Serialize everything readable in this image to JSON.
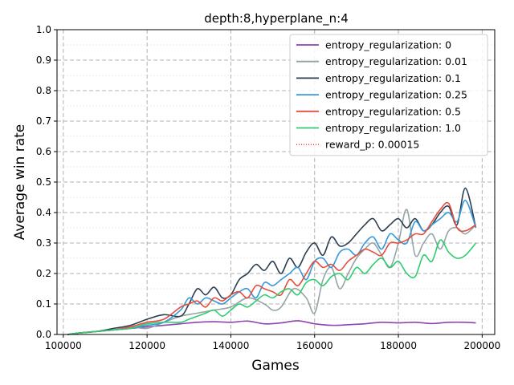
{
  "chart_data": {
    "type": "line",
    "title": "depth:8,hyperplane_n:4",
    "xlabel": "Games",
    "ylabel": "Average win rate",
    "xlim": [
      98500,
      203000
    ],
    "ylim": [
      0,
      1.0
    ],
    "x_ticks": [
      100000,
      120000,
      140000,
      160000,
      180000,
      200000
    ],
    "x_tick_labels": [
      "100000",
      "120000",
      "140000",
      "160000",
      "180000",
      "200000"
    ],
    "y_ticks": [
      0.0,
      0.1,
      0.2,
      0.3,
      0.4,
      0.5,
      0.6,
      0.7,
      0.8,
      0.9,
      1.0
    ],
    "y_tick_labels": [
      "0.0",
      "0.1",
      "0.2",
      "0.3",
      "0.4",
      "0.5",
      "0.6",
      "0.7",
      "0.8",
      "0.9",
      "1.0"
    ],
    "grid": true,
    "legend_position": "top-right",
    "series": [
      {
        "name": "entropy_regularization: 0",
        "color": "#8e44ad",
        "style": "solid",
        "x": [
          101000,
          104000,
          108000,
          112000,
          116000,
          120000,
          124000,
          128000,
          132000,
          136000,
          140000,
          144000,
          148000,
          152000,
          156000,
          160000,
          164000,
          168000,
          172000,
          176000,
          180000,
          184000,
          188000,
          192000,
          196000,
          198500
        ],
        "values": [
          0.0,
          0.005,
          0.01,
          0.015,
          0.02,
          0.025,
          0.03,
          0.035,
          0.04,
          0.042,
          0.04,
          0.044,
          0.035,
          0.038,
          0.045,
          0.035,
          0.03,
          0.032,
          0.035,
          0.04,
          0.038,
          0.04,
          0.036,
          0.04,
          0.04,
          0.038
        ]
      },
      {
        "name": "entropy_regularization: 0.01",
        "color": "#95a5a6",
        "style": "solid",
        "x": [
          101000,
          104000,
          108000,
          112000,
          116000,
          120000,
          124000,
          128000,
          132000,
          136000,
          140000,
          144000,
          148000,
          150000,
          152000,
          155000,
          158000,
          160000,
          162000,
          164000,
          166000,
          168000,
          170000,
          172000,
          174000,
          176000,
          178000,
          180000,
          182000,
          184000,
          186000,
          188000,
          190000,
          192000,
          194000,
          196000,
          198500
        ],
        "values": [
          0.0,
          0.005,
          0.01,
          0.015,
          0.025,
          0.02,
          0.04,
          0.06,
          0.07,
          0.08,
          0.09,
          0.12,
          0.1,
          0.08,
          0.09,
          0.15,
          0.12,
          0.07,
          0.18,
          0.22,
          0.15,
          0.2,
          0.25,
          0.28,
          0.3,
          0.26,
          0.22,
          0.3,
          0.41,
          0.26,
          0.3,
          0.33,
          0.28,
          0.34,
          0.35,
          0.33,
          0.36
        ]
      },
      {
        "name": "entropy_regularization: 0.1",
        "color": "#2c3e50",
        "style": "solid",
        "x": [
          101000,
          104000,
          108000,
          112000,
          116000,
          120000,
          124000,
          128000,
          130000,
          132000,
          134000,
          136000,
          138000,
          140000,
          142000,
          144000,
          146000,
          148000,
          150000,
          152000,
          154000,
          156000,
          158000,
          160000,
          162000,
          164000,
          166000,
          168000,
          170000,
          172000,
          174000,
          176000,
          178000,
          180000,
          182000,
          184000,
          186000,
          188000,
          190000,
          192000,
          194000,
          196000,
          198500
        ],
        "values": [
          0.0,
          0.005,
          0.01,
          0.02,
          0.03,
          0.05,
          0.065,
          0.06,
          0.1,
          0.15,
          0.13,
          0.155,
          0.12,
          0.13,
          0.18,
          0.2,
          0.23,
          0.21,
          0.24,
          0.2,
          0.25,
          0.22,
          0.27,
          0.3,
          0.26,
          0.32,
          0.29,
          0.3,
          0.33,
          0.36,
          0.38,
          0.34,
          0.36,
          0.38,
          0.35,
          0.38,
          0.34,
          0.36,
          0.4,
          0.42,
          0.36,
          0.48,
          0.35
        ]
      },
      {
        "name": "entropy_regularization: 0.25",
        "color": "#3498db",
        "style": "solid",
        "x": [
          101000,
          104000,
          108000,
          112000,
          116000,
          120000,
          124000,
          128000,
          130000,
          132000,
          134000,
          136000,
          138000,
          140000,
          142000,
          144000,
          146000,
          148000,
          150000,
          152000,
          154000,
          156000,
          158000,
          160000,
          162000,
          164000,
          166000,
          168000,
          170000,
          172000,
          174000,
          176000,
          178000,
          180000,
          182000,
          184000,
          186000,
          188000,
          190000,
          192000,
          194000,
          196000,
          198500
        ],
        "values": [
          0.0,
          0.005,
          0.01,
          0.015,
          0.02,
          0.03,
          0.04,
          0.08,
          0.12,
          0.1,
          0.12,
          0.11,
          0.1,
          0.12,
          0.14,
          0.15,
          0.12,
          0.17,
          0.16,
          0.18,
          0.2,
          0.22,
          0.18,
          0.24,
          0.25,
          0.22,
          0.27,
          0.28,
          0.26,
          0.3,
          0.32,
          0.28,
          0.33,
          0.31,
          0.3,
          0.37,
          0.34,
          0.36,
          0.38,
          0.4,
          0.37,
          0.44,
          0.35
        ]
      },
      {
        "name": "entropy_regularization: 0.5",
        "color": "#e74c3c",
        "style": "solid",
        "x": [
          101000,
          104000,
          108000,
          112000,
          116000,
          120000,
          124000,
          128000,
          130000,
          132000,
          134000,
          136000,
          138000,
          140000,
          142000,
          144000,
          146000,
          148000,
          150000,
          152000,
          154000,
          156000,
          158000,
          160000,
          162000,
          164000,
          166000,
          168000,
          170000,
          172000,
          174000,
          176000,
          178000,
          180000,
          182000,
          184000,
          186000,
          188000,
          190000,
          192000,
          194000,
          196000,
          198500
        ],
        "values": [
          0.0,
          0.005,
          0.01,
          0.015,
          0.025,
          0.04,
          0.05,
          0.09,
          0.1,
          0.11,
          0.09,
          0.12,
          0.11,
          0.13,
          0.14,
          0.12,
          0.16,
          0.15,
          0.14,
          0.13,
          0.18,
          0.16,
          0.2,
          0.24,
          0.22,
          0.23,
          0.21,
          0.24,
          0.26,
          0.28,
          0.27,
          0.26,
          0.3,
          0.3,
          0.31,
          0.33,
          0.33,
          0.37,
          0.41,
          0.43,
          0.35,
          0.34,
          0.36
        ]
      },
      {
        "name": "entropy_regularization: 1.0",
        "color": "#2ecc71",
        "style": "solid",
        "x": [
          101000,
          104000,
          108000,
          112000,
          116000,
          120000,
          124000,
          128000,
          130000,
          132000,
          134000,
          136000,
          138000,
          140000,
          142000,
          144000,
          146000,
          148000,
          150000,
          152000,
          154000,
          156000,
          158000,
          160000,
          162000,
          164000,
          166000,
          168000,
          170000,
          172000,
          174000,
          176000,
          178000,
          180000,
          182000,
          184000,
          186000,
          188000,
          190000,
          192000,
          194000,
          196000,
          198500
        ],
        "values": [
          0.0,
          0.005,
          0.01,
          0.015,
          0.02,
          0.035,
          0.04,
          0.04,
          0.05,
          0.06,
          0.07,
          0.08,
          0.06,
          0.08,
          0.1,
          0.09,
          0.11,
          0.13,
          0.12,
          0.14,
          0.15,
          0.13,
          0.17,
          0.18,
          0.16,
          0.19,
          0.2,
          0.18,
          0.22,
          0.2,
          0.23,
          0.25,
          0.22,
          0.24,
          0.2,
          0.19,
          0.26,
          0.24,
          0.31,
          0.27,
          0.25,
          0.26,
          0.3
        ]
      },
      {
        "name": "reward_p: 0.00015",
        "color": "#ff0000",
        "style": "dotted",
        "x": [],
        "values": []
      }
    ]
  }
}
